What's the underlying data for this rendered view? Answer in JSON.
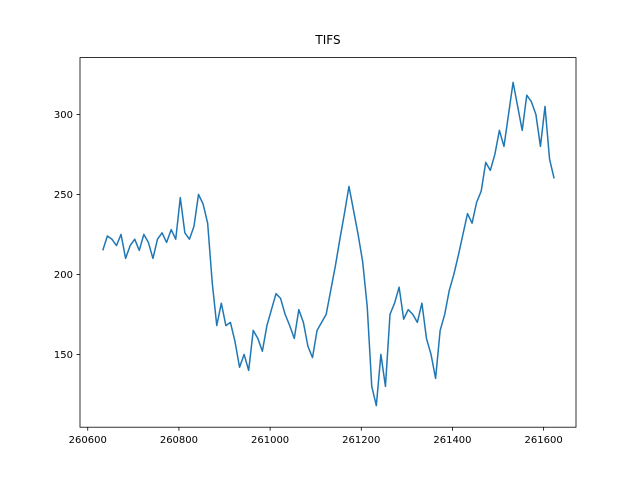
{
  "chart_data": {
    "type": "line",
    "title": "TIFS",
    "x": [
      260633,
      260643,
      260653,
      260663,
      260673,
      260683,
      260693,
      260703,
      260713,
      260723,
      260733,
      260743,
      260753,
      260763,
      260773,
      260783,
      260793,
      260803,
      260813,
      260823,
      260833,
      260843,
      260853,
      260863,
      260873,
      260883,
      260893,
      260903,
      260913,
      260923,
      260933,
      260943,
      260953,
      260963,
      260973,
      260983,
      260993,
      261003,
      261013,
      261023,
      261033,
      261043,
      261053,
      261063,
      261073,
      261083,
      261093,
      261103,
      261113,
      261123,
      261133,
      261143,
      261153,
      261163,
      261173,
      261183,
      261193,
      261203,
      261213,
      261223,
      261233,
      261243,
      261253,
      261263,
      261273,
      261283,
      261293,
      261303,
      261313,
      261323,
      261333,
      261343,
      261353,
      261363,
      261373,
      261383,
      261393,
      261403,
      261413,
      261423,
      261433,
      261443,
      261453,
      261463,
      261473,
      261483,
      261493,
      261503,
      261513,
      261523,
      261533,
      261543,
      261553,
      261563,
      261573,
      261583,
      261593,
      261603,
      261613,
      261623
    ],
    "series": [
      {
        "color": "#1f77b4",
        "values": [
          215,
          224,
          222,
          218,
          225,
          210,
          218,
          222,
          215,
          225,
          220,
          210,
          222,
          226,
          220,
          228,
          222,
          248,
          226,
          222,
          230,
          250,
          244,
          232,
          195,
          168,
          182,
          168,
          170,
          158,
          142,
          150,
          140,
          165,
          160,
          152,
          168,
          178,
          188,
          185,
          175,
          168,
          160,
          178,
          170,
          155,
          148,
          165,
          170,
          175,
          190,
          205,
          222,
          238,
          255,
          240,
          225,
          208,
          180,
          130,
          118,
          150,
          130,
          175,
          182,
          192,
          172,
          178,
          175,
          170,
          182,
          160,
          150,
          135,
          165,
          175,
          190,
          200,
          212,
          225,
          238,
          232,
          245,
          252,
          270,
          265,
          275,
          290,
          280,
          300,
          320,
          305,
          290,
          312,
          308,
          300,
          280,
          305,
          272,
          260
        ]
      }
    ],
    "xlim": [
      260583,
      261671
    ],
    "ylim": [
      104.5,
      335.5
    ],
    "xticks": [
      260600,
      260800,
      261000,
      261200,
      261400,
      261600
    ],
    "yticks": [
      150,
      200,
      250,
      300
    ]
  }
}
